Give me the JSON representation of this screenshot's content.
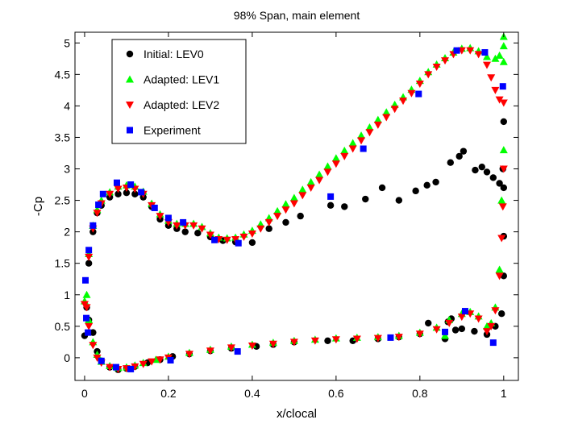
{
  "chart_data": {
    "type": "scatter",
    "title": "98% Span, main element",
    "xlabel": "x/clocal",
    "ylabel": "-Cp",
    "xlim": [
      -0.023,
      1.035
    ],
    "ylim": [
      -0.36,
      5.17
    ],
    "xticks": [
      0,
      0.2,
      0.4,
      0.6,
      0.8,
      1
    ],
    "xtick_labels": [
      "0",
      "0.2",
      "0.4",
      "0.6",
      "0.8",
      "1"
    ],
    "yticks": [
      0,
      0.5,
      1,
      1.5,
      2,
      2.5,
      3,
      3.5,
      4,
      4.5,
      5
    ],
    "ytick_labels": [
      "0",
      "0.5",
      "1",
      "1.5",
      "2",
      "2.5",
      "3",
      "3.5",
      "4",
      "4.5",
      "5"
    ],
    "grid": false,
    "legend_position": "top-left",
    "series": [
      {
        "name": "Initial: LEV0",
        "marker": "circle",
        "color": "#000000",
        "points": [
          [
            0,
            0.35
          ],
          [
            0.005,
            0.8
          ],
          [
            0.01,
            1.5
          ],
          [
            0.02,
            2.0
          ],
          [
            0.03,
            2.3
          ],
          [
            0.04,
            2.42
          ],
          [
            0.06,
            2.55
          ],
          [
            0.08,
            2.6
          ],
          [
            0.1,
            2.62
          ],
          [
            0.12,
            2.6
          ],
          [
            0.14,
            2.55
          ],
          [
            0.16,
            2.4
          ],
          [
            0.18,
            2.2
          ],
          [
            0.2,
            2.1
          ],
          [
            0.22,
            2.05
          ],
          [
            0.24,
            2.0
          ],
          [
            0.27,
            1.98
          ],
          [
            0.3,
            1.92
          ],
          [
            0.33,
            1.86
          ],
          [
            0.36,
            1.84
          ],
          [
            0.4,
            1.83
          ],
          [
            0.44,
            2.05
          ],
          [
            0.48,
            2.15
          ],
          [
            0.515,
            2.25
          ],
          [
            0.587,
            2.42
          ],
          [
            0.62,
            2.4
          ],
          [
            0.67,
            2.52
          ],
          [
            0.71,
            2.7
          ],
          [
            0.75,
            2.5
          ],
          [
            0.79,
            2.65
          ],
          [
            0.817,
            2.74
          ],
          [
            0.838,
            2.79
          ],
          [
            0.873,
            3.1
          ],
          [
            0.894,
            3.2
          ],
          [
            0.904,
            3.28
          ],
          [
            0.932,
            2.98
          ],
          [
            0.948,
            3.03
          ],
          [
            0.96,
            2.95
          ],
          [
            0.975,
            2.86
          ],
          [
            0.99,
            2.77
          ],
          [
            1.0,
            2.7
          ],
          [
            0.998,
            3.0
          ],
          [
            1.0,
            1.93
          ],
          [
            1.0,
            3.75
          ],
          [
            1.0,
            1.3
          ],
          [
            0.995,
            0.7
          ],
          [
            0.98,
            0.5
          ],
          [
            0.96,
            0.37
          ],
          [
            0.93,
            0.42
          ],
          [
            0.9,
            0.46
          ],
          [
            0.885,
            0.44
          ],
          [
            0.875,
            0.62
          ],
          [
            0.867,
            0.57
          ],
          [
            0.86,
            0.3
          ],
          [
            0.82,
            0.55
          ],
          [
            0.8,
            0.38
          ],
          [
            0.75,
            0.33
          ],
          [
            0.7,
            0.3
          ],
          [
            0.64,
            0.27
          ],
          [
            0.58,
            0.27
          ],
          [
            0.5,
            0.25
          ],
          [
            0.45,
            0.21
          ],
          [
            0.41,
            0.18
          ],
          [
            0.35,
            0.15
          ],
          [
            0.3,
            0.11
          ],
          [
            0.25,
            0.06
          ],
          [
            0.21,
            0.02
          ],
          [
            0.18,
            -0.03
          ],
          [
            0.15,
            -0.08
          ],
          [
            0.12,
            -0.14
          ],
          [
            0.1,
            -0.17
          ],
          [
            0.08,
            -0.19
          ],
          [
            0.06,
            -0.15
          ],
          [
            0.04,
            -0.05
          ],
          [
            0.03,
            0.1
          ],
          [
            0.02,
            0.4
          ],
          [
            0.01,
            0.6
          ]
        ]
      },
      {
        "name": "Adapted: LEV1",
        "marker": "triangle-up",
        "color": "#00ff00",
        "points": [
          [
            0,
            0.9
          ],
          [
            0.01,
            1.65
          ],
          [
            0.02,
            2.1
          ],
          [
            0.03,
            2.35
          ],
          [
            0.04,
            2.5
          ],
          [
            0.06,
            2.63
          ],
          [
            0.08,
            2.72
          ],
          [
            0.1,
            2.74
          ],
          [
            0.12,
            2.72
          ],
          [
            0.14,
            2.64
          ],
          [
            0.16,
            2.45
          ],
          [
            0.18,
            2.28
          ],
          [
            0.2,
            2.18
          ],
          [
            0.22,
            2.13
          ],
          [
            0.24,
            2.13
          ],
          [
            0.26,
            2.13
          ],
          [
            0.28,
            2.08
          ],
          [
            0.3,
            1.98
          ],
          [
            0.32,
            1.91
          ],
          [
            0.34,
            1.9
          ],
          [
            0.36,
            1.91
          ],
          [
            0.38,
            1.96
          ],
          [
            0.4,
            2.02
          ],
          [
            0.42,
            2.12
          ],
          [
            0.44,
            2.22
          ],
          [
            0.46,
            2.33
          ],
          [
            0.48,
            2.44
          ],
          [
            0.5,
            2.54
          ],
          [
            0.52,
            2.67
          ],
          [
            0.54,
            2.79
          ],
          [
            0.56,
            2.91
          ],
          [
            0.58,
            3.04
          ],
          [
            0.6,
            3.17
          ],
          [
            0.62,
            3.29
          ],
          [
            0.64,
            3.41
          ],
          [
            0.66,
            3.53
          ],
          [
            0.68,
            3.66
          ],
          [
            0.7,
            3.78
          ],
          [
            0.72,
            3.9
          ],
          [
            0.74,
            4.02
          ],
          [
            0.76,
            4.14
          ],
          [
            0.78,
            4.26
          ],
          [
            0.8,
            4.4
          ],
          [
            0.82,
            4.54
          ],
          [
            0.84,
            4.66
          ],
          [
            0.86,
            4.76
          ],
          [
            0.88,
            4.85
          ],
          [
            0.9,
            4.91
          ],
          [
            0.92,
            4.92
          ],
          [
            0.94,
            4.87
          ],
          [
            0.96,
            4.78
          ],
          [
            0.98,
            4.75
          ],
          [
            0.99,
            4.8
          ],
          [
            1.0,
            4.95
          ],
          [
            1.0,
            5.1
          ],
          [
            1.0,
            4.7
          ],
          [
            1.0,
            3.3
          ],
          [
            0.995,
            2.5
          ],
          [
            0.99,
            1.4
          ],
          [
            0.98,
            0.8
          ],
          [
            0.97,
            0.55
          ],
          [
            0.96,
            0.5
          ],
          [
            0.94,
            0.66
          ],
          [
            0.92,
            0.73
          ],
          [
            0.9,
            0.7
          ],
          [
            0.87,
            0.6
          ],
          [
            0.86,
            0.35
          ],
          [
            0.84,
            0.48
          ],
          [
            0.8,
            0.4
          ],
          [
            0.75,
            0.35
          ],
          [
            0.7,
            0.33
          ],
          [
            0.65,
            0.32
          ],
          [
            0.6,
            0.31
          ],
          [
            0.55,
            0.29
          ],
          [
            0.5,
            0.27
          ],
          [
            0.45,
            0.24
          ],
          [
            0.4,
            0.21
          ],
          [
            0.35,
            0.18
          ],
          [
            0.3,
            0.13
          ],
          [
            0.25,
            0.08
          ],
          [
            0.2,
            0.02
          ],
          [
            0.17,
            -0.03
          ],
          [
            0.14,
            -0.08
          ],
          [
            0.12,
            -0.12
          ],
          [
            0.1,
            -0.15
          ],
          [
            0.08,
            -0.16
          ],
          [
            0.06,
            -0.13
          ],
          [
            0.04,
            -0.06
          ],
          [
            0.03,
            0.05
          ],
          [
            0.02,
            0.25
          ],
          [
            0.01,
            0.6
          ],
          [
            0.005,
            1.0
          ]
        ]
      },
      {
        "name": "Adapted: LEV2",
        "marker": "triangle-down",
        "color": "#ff0000",
        "points": [
          [
            0,
            0.85
          ],
          [
            0.01,
            1.6
          ],
          [
            0.02,
            2.05
          ],
          [
            0.03,
            2.3
          ],
          [
            0.04,
            2.45
          ],
          [
            0.06,
            2.6
          ],
          [
            0.08,
            2.68
          ],
          [
            0.1,
            2.7
          ],
          [
            0.12,
            2.68
          ],
          [
            0.14,
            2.6
          ],
          [
            0.16,
            2.42
          ],
          [
            0.18,
            2.25
          ],
          [
            0.2,
            2.15
          ],
          [
            0.22,
            2.1
          ],
          [
            0.24,
            2.1
          ],
          [
            0.26,
            2.1
          ],
          [
            0.28,
            2.05
          ],
          [
            0.3,
            1.95
          ],
          [
            0.32,
            1.88
          ],
          [
            0.34,
            1.87
          ],
          [
            0.36,
            1.88
          ],
          [
            0.38,
            1.92
          ],
          [
            0.4,
            1.97
          ],
          [
            0.42,
            2.05
          ],
          [
            0.44,
            2.15
          ],
          [
            0.46,
            2.25
          ],
          [
            0.48,
            2.35
          ],
          [
            0.5,
            2.45
          ],
          [
            0.52,
            2.58
          ],
          [
            0.54,
            2.7
          ],
          [
            0.56,
            2.82
          ],
          [
            0.58,
            2.95
          ],
          [
            0.6,
            3.08
          ],
          [
            0.62,
            3.2
          ],
          [
            0.64,
            3.32
          ],
          [
            0.66,
            3.45
          ],
          [
            0.68,
            3.58
          ],
          [
            0.7,
            3.7
          ],
          [
            0.72,
            3.82
          ],
          [
            0.74,
            3.95
          ],
          [
            0.76,
            4.08
          ],
          [
            0.78,
            4.2
          ],
          [
            0.8,
            4.35
          ],
          [
            0.82,
            4.5
          ],
          [
            0.84,
            4.62
          ],
          [
            0.86,
            4.72
          ],
          [
            0.88,
            4.82
          ],
          [
            0.9,
            4.88
          ],
          [
            0.92,
            4.88
          ],
          [
            0.94,
            4.82
          ],
          [
            0.96,
            4.65
          ],
          [
            0.97,
            4.45
          ],
          [
            0.98,
            4.25
          ],
          [
            0.99,
            4.1
          ],
          [
            1.0,
            4.05
          ],
          [
            1.0,
            3.0
          ],
          [
            0.998,
            2.4
          ],
          [
            0.995,
            1.9
          ],
          [
            0.99,
            1.3
          ],
          [
            0.98,
            0.75
          ],
          [
            0.97,
            0.5
          ],
          [
            0.96,
            0.42
          ],
          [
            0.94,
            0.62
          ],
          [
            0.92,
            0.7
          ],
          [
            0.9,
            0.65
          ],
          [
            0.87,
            0.55
          ],
          [
            0.84,
            0.45
          ],
          [
            0.8,
            0.38
          ],
          [
            0.75,
            0.33
          ],
          [
            0.7,
            0.31
          ],
          [
            0.65,
            0.3
          ],
          [
            0.6,
            0.29
          ],
          [
            0.55,
            0.27
          ],
          [
            0.5,
            0.25
          ],
          [
            0.45,
            0.22
          ],
          [
            0.4,
            0.19
          ],
          [
            0.35,
            0.16
          ],
          [
            0.3,
            0.11
          ],
          [
            0.25,
            0.06
          ],
          [
            0.2,
            0.0
          ],
          [
            0.18,
            -0.03
          ],
          [
            0.16,
            -0.06
          ],
          [
            0.14,
            -0.1
          ],
          [
            0.12,
            -0.14
          ],
          [
            0.1,
            -0.17
          ],
          [
            0.08,
            -0.18
          ],
          [
            0.06,
            -0.15
          ],
          [
            0.04,
            -0.08
          ],
          [
            0.03,
            0.0
          ],
          [
            0.02,
            0.2
          ],
          [
            0.01,
            0.5
          ],
          [
            0.005,
            0.8
          ]
        ]
      },
      {
        "name": "Experiment",
        "marker": "square",
        "color": "#0000ff",
        "points": [
          [
            0.002,
            1.23
          ],
          [
            0.004,
            0.63
          ],
          [
            0.01,
            1.71
          ],
          [
            0.008,
            0.4
          ],
          [
            0.02,
            2.1
          ],
          [
            0.033,
            2.43
          ],
          [
            0.044,
            2.6
          ],
          [
            0.04,
            -0.05
          ],
          [
            0.077,
            2.78
          ],
          [
            0.075,
            -0.15
          ],
          [
            0.11,
            2.75
          ],
          [
            0.11,
            -0.18
          ],
          [
            0.135,
            2.63
          ],
          [
            0.167,
            2.38
          ],
          [
            0.2,
            2.22
          ],
          [
            0.205,
            -0.04
          ],
          [
            0.235,
            2.15
          ],
          [
            0.31,
            1.87
          ],
          [
            0.367,
            1.82
          ],
          [
            0.365,
            0.1
          ],
          [
            0.587,
            2.56
          ],
          [
            0.665,
            3.32
          ],
          [
            0.73,
            0.32
          ],
          [
            0.797,
            4.19
          ],
          [
            0.86,
            0.41
          ],
          [
            0.888,
            4.88
          ],
          [
            0.908,
            0.74
          ],
          [
            0.955,
            4.85
          ],
          [
            0.975,
            0.24
          ],
          [
            0.998,
            4.31
          ]
        ]
      }
    ]
  }
}
